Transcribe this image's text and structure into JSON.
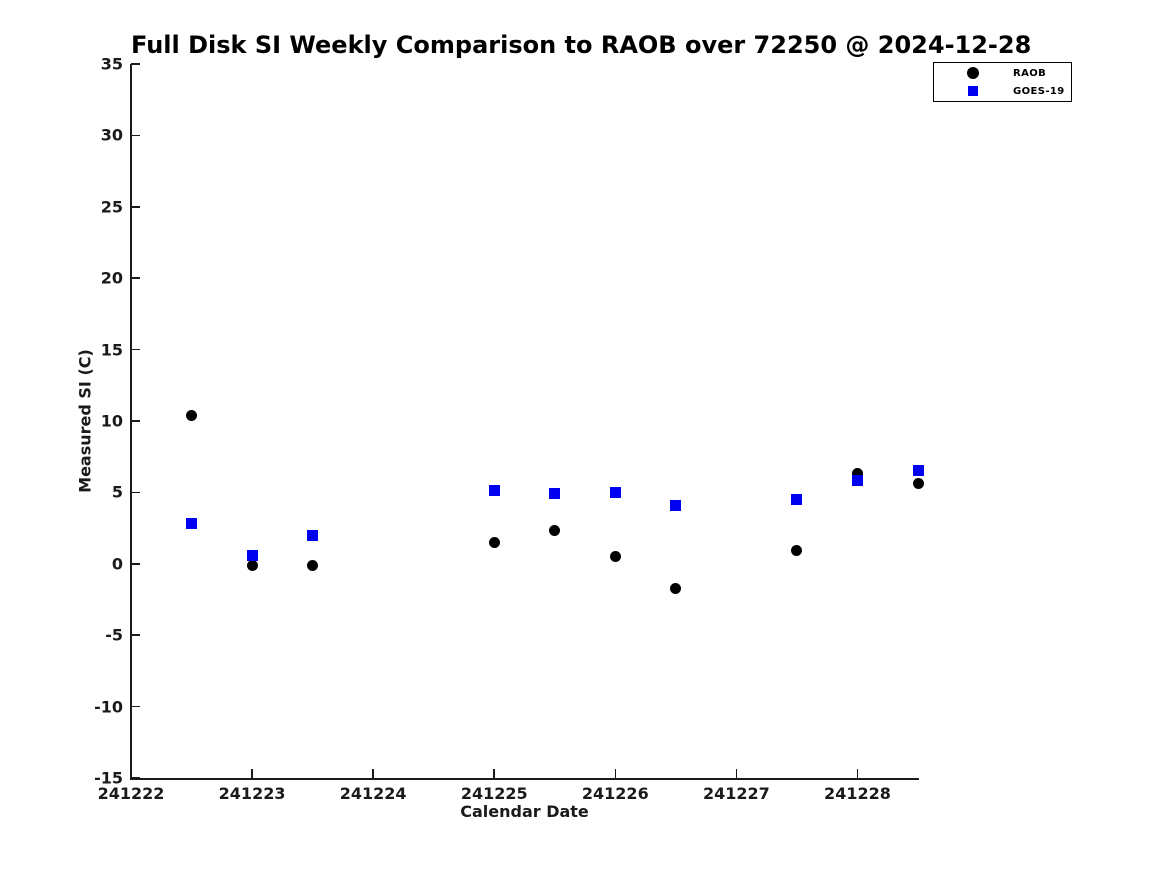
{
  "chart_data": {
    "type": "scatter",
    "title": "Full Disk SI Weekly Comparison to RAOB over 72250 @ 2024-12-28",
    "xlabel": "Calendar Date",
    "ylabel": "Measured SI (C)",
    "xlim": [
      241222,
      241228.5
    ],
    "ylim": [
      -15,
      35
    ],
    "xticks": [
      241222,
      241223,
      241224,
      241225,
      241226,
      241227,
      241228
    ],
    "yticks": [
      -15,
      -10,
      -5,
      0,
      5,
      10,
      15,
      20,
      25,
      30,
      35
    ],
    "grid": false,
    "legend_position": "outside-top-right",
    "series": [
      {
        "name": "RAOB",
        "marker": "circle",
        "color": "#000000",
        "points": [
          [
            241222.5,
            10.4
          ],
          [
            241223.0,
            -0.1
          ],
          [
            241223.5,
            -0.1
          ],
          [
            241225.0,
            1.5
          ],
          [
            241225.5,
            2.3
          ],
          [
            241226.0,
            0.5
          ],
          [
            241226.5,
            -1.7
          ],
          [
            241227.5,
            0.9
          ],
          [
            241228.0,
            6.3
          ],
          [
            241228.5,
            5.6
          ]
        ]
      },
      {
        "name": "GOES-19",
        "marker": "square",
        "color": "#0000f0",
        "points": [
          [
            241222.5,
            2.8
          ],
          [
            241223.0,
            0.6
          ],
          [
            241223.5,
            2.0
          ],
          [
            241225.0,
            5.1
          ],
          [
            241225.5,
            4.9
          ],
          [
            241226.0,
            5.0
          ],
          [
            241226.5,
            4.1
          ],
          [
            241227.5,
            4.5
          ],
          [
            241228.0,
            5.8
          ],
          [
            241228.5,
            6.5
          ]
        ]
      }
    ]
  }
}
